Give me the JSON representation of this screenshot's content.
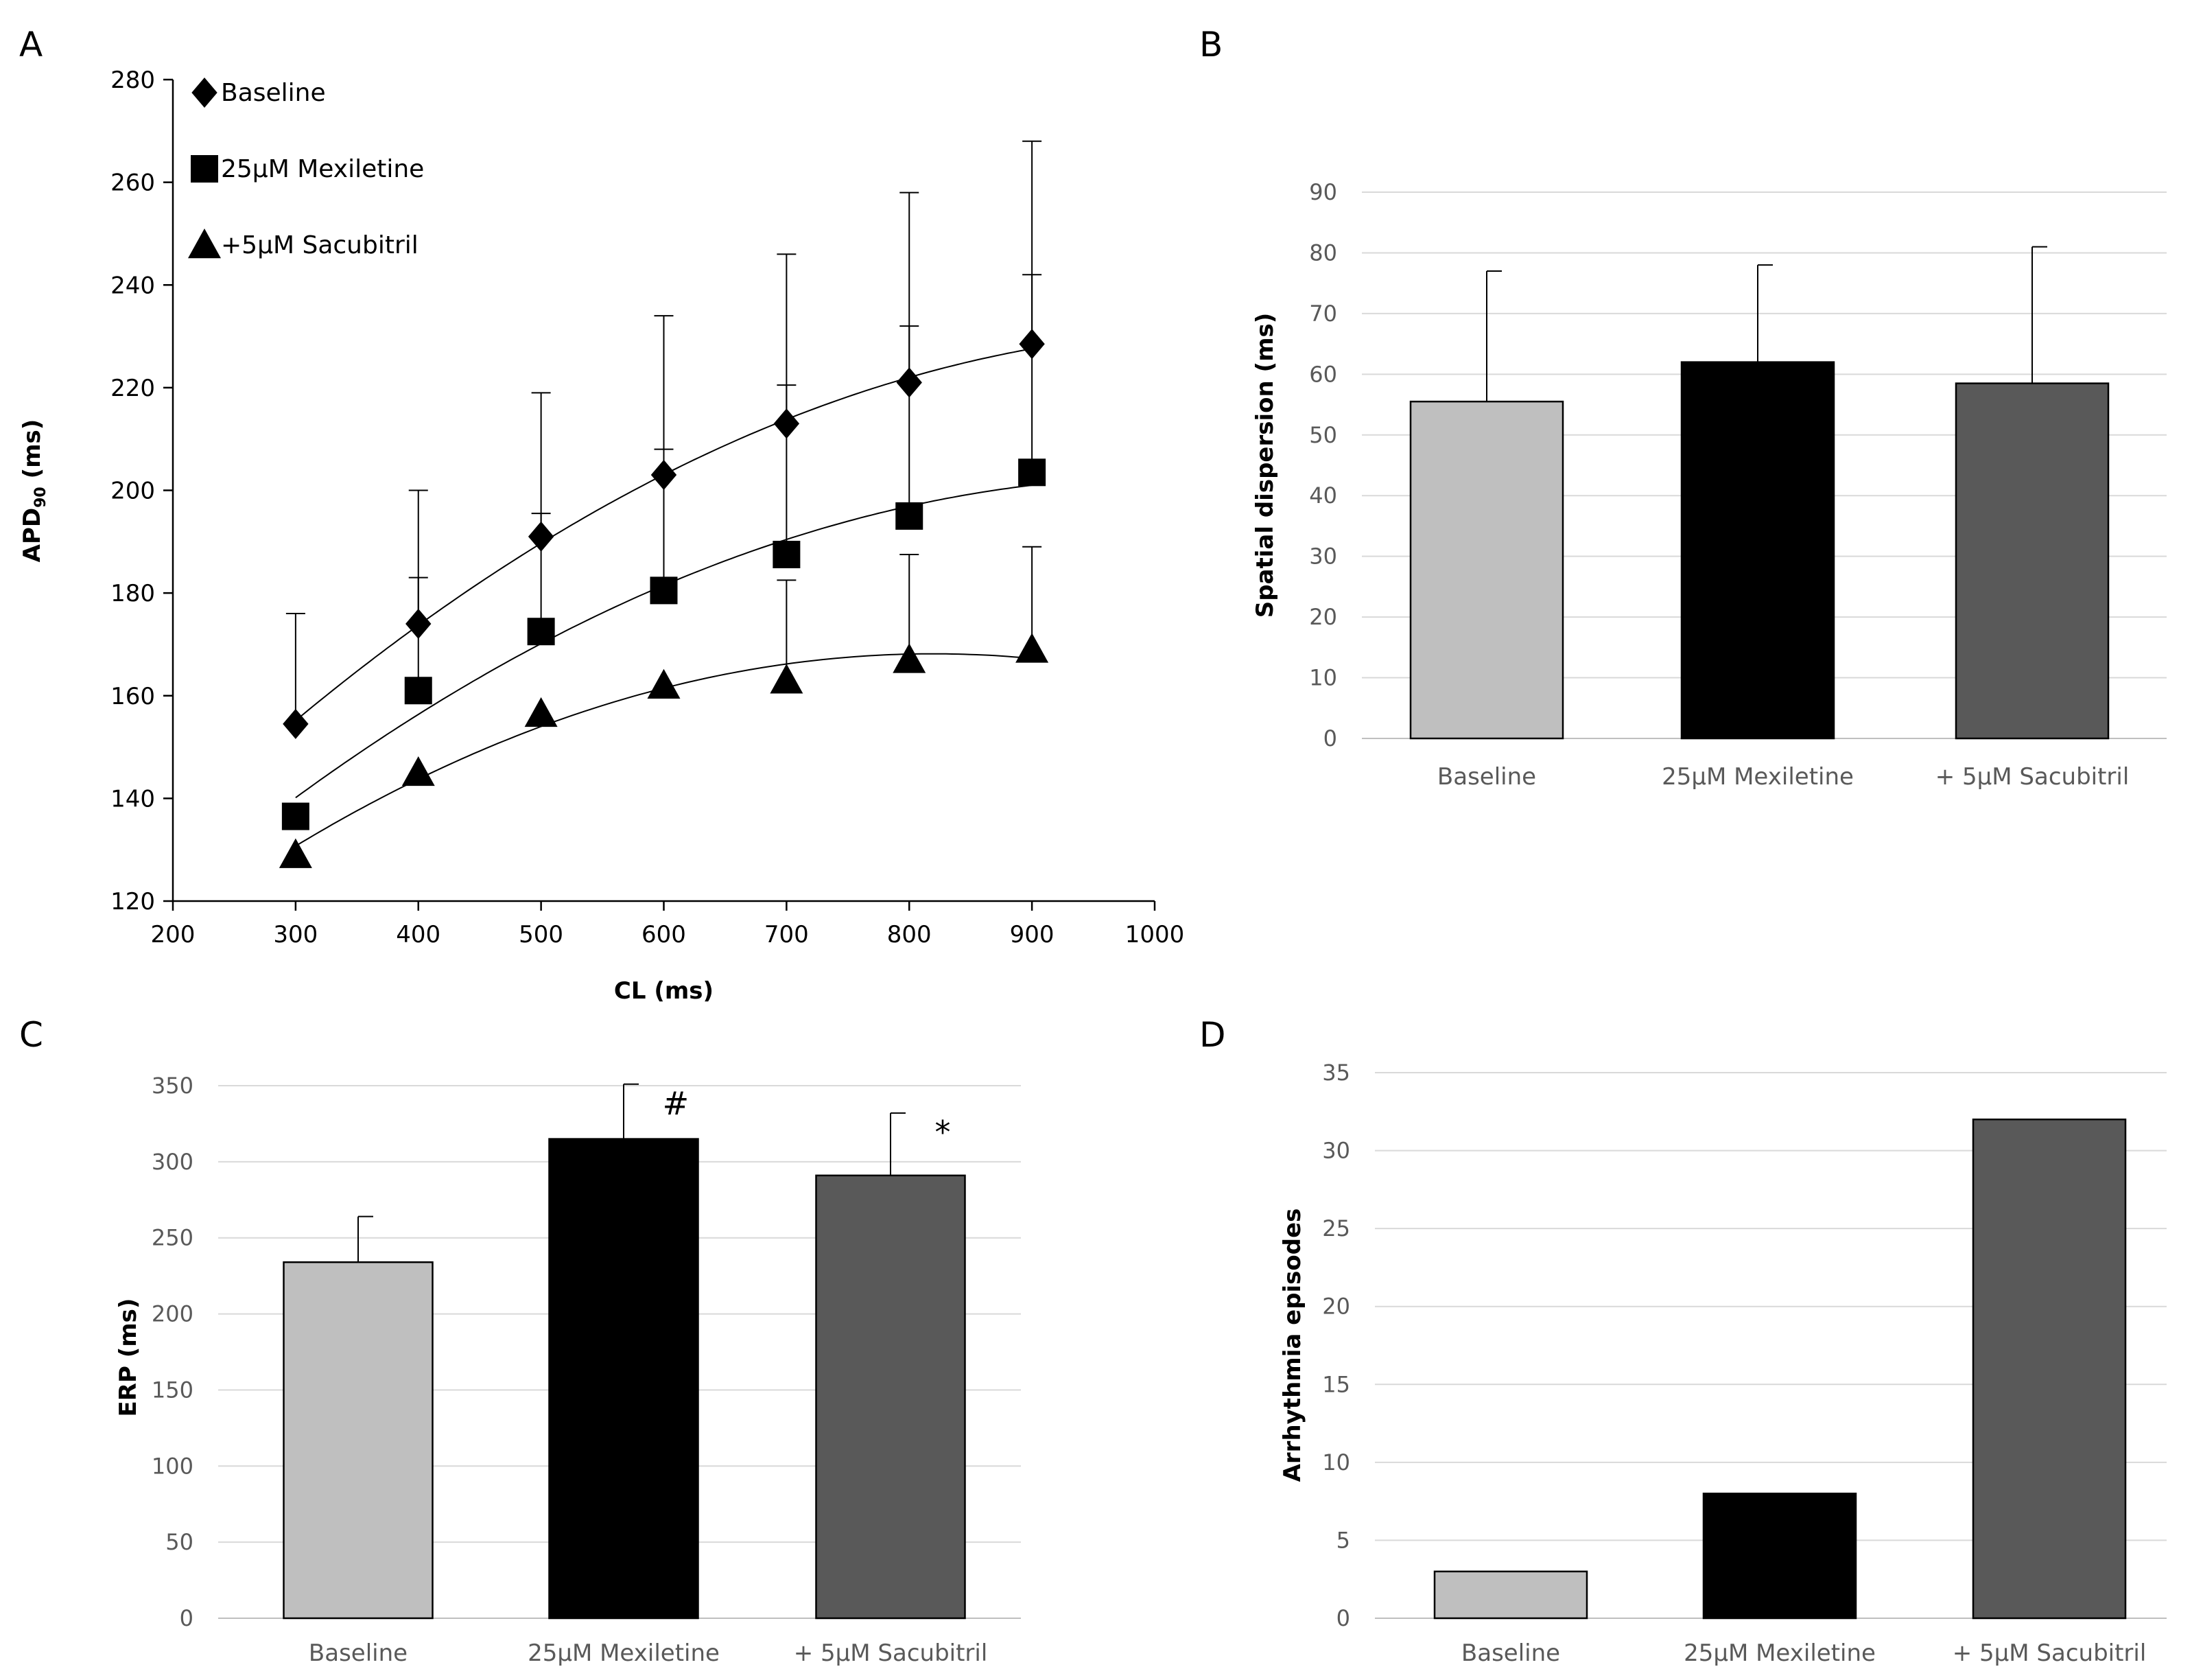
{
  "colors": {
    "baseline": "#bfbfbf",
    "mexiletine": "#000000",
    "sacubitril": "#595959",
    "gridline": "#d9d9d9",
    "axis": "#000000",
    "text": "#000000",
    "tick_text_bar": "#595959"
  },
  "chart_data": [
    {
      "panel": "A",
      "type": "scatter",
      "xlabel": "CL (ms)",
      "ylabel_main": "APD",
      "ylabel_sub": "90",
      "ylabel_unit": " (ms)",
      "xlim": [
        200,
        1000
      ],
      "ylim": [
        120,
        280
      ],
      "xticks": [
        200,
        300,
        400,
        500,
        600,
        700,
        800,
        900,
        1000
      ],
      "yticks": [
        120,
        140,
        160,
        180,
        200,
        220,
        240,
        260,
        280
      ],
      "x": [
        300,
        400,
        500,
        600,
        700,
        800,
        900
      ],
      "legend": [
        "Baseline",
        "25µM Mexiletine",
        "+5µM Sacubitril"
      ],
      "series": [
        {
          "name": "Baseline",
          "marker": "diamond",
          "values": [
            154.5,
            174,
            191,
            203,
            213,
            221,
            228.5
          ],
          "err_upper": [
            176,
            200,
            219,
            234,
            246,
            258,
            268
          ]
        },
        {
          "name": "25µM Mexiletine",
          "marker": "square",
          "values": [
            136.5,
            161,
            172.5,
            180.5,
            187.5,
            195,
            203.5
          ],
          "err_upper": [
            null,
            183,
            195.5,
            208,
            220.5,
            232,
            242
          ]
        },
        {
          "name": "+5µM Sacubitril",
          "marker": "triangle",
          "values": [
            129,
            145,
            156.5,
            162,
            163,
            167,
            169
          ],
          "err_upper": [
            null,
            null,
            null,
            null,
            182.5,
            187.5,
            189
          ]
        }
      ]
    },
    {
      "panel": "B",
      "type": "bar",
      "categories": [
        "Baseline",
        "25µM Mexiletine",
        "+ 5µM Sacubitril"
      ],
      "values": [
        55.5,
        62,
        58.5
      ],
      "err_upper": [
        77,
        78,
        81
      ],
      "ylabel": "Spatial dispersion (ms)",
      "ylim": [
        0,
        90
      ],
      "yticks": [
        0,
        10,
        20,
        30,
        40,
        50,
        60,
        70,
        80,
        90
      ]
    },
    {
      "panel": "C",
      "type": "bar",
      "categories": [
        "Baseline",
        "25µM Mexiletine",
        "+ 5µM Sacubitril"
      ],
      "values": [
        234,
        315,
        291
      ],
      "err_upper": [
        264,
        351,
        332
      ],
      "annotations": [
        "",
        "#",
        "*"
      ],
      "ylabel": "ERP (ms)",
      "ylim": [
        0,
        350
      ],
      "yticks": [
        0,
        50,
        100,
        150,
        200,
        250,
        300,
        350
      ]
    },
    {
      "panel": "D",
      "type": "bar",
      "categories": [
        "Baseline",
        "25µM Mexiletine",
        "+ 5µM Sacubitril"
      ],
      "values": [
        3,
        8,
        32
      ],
      "ylabel": "Arrhythmia episodes",
      "ylim": [
        0,
        35
      ],
      "yticks": [
        0,
        5,
        10,
        15,
        20,
        25,
        30,
        35
      ]
    }
  ]
}
